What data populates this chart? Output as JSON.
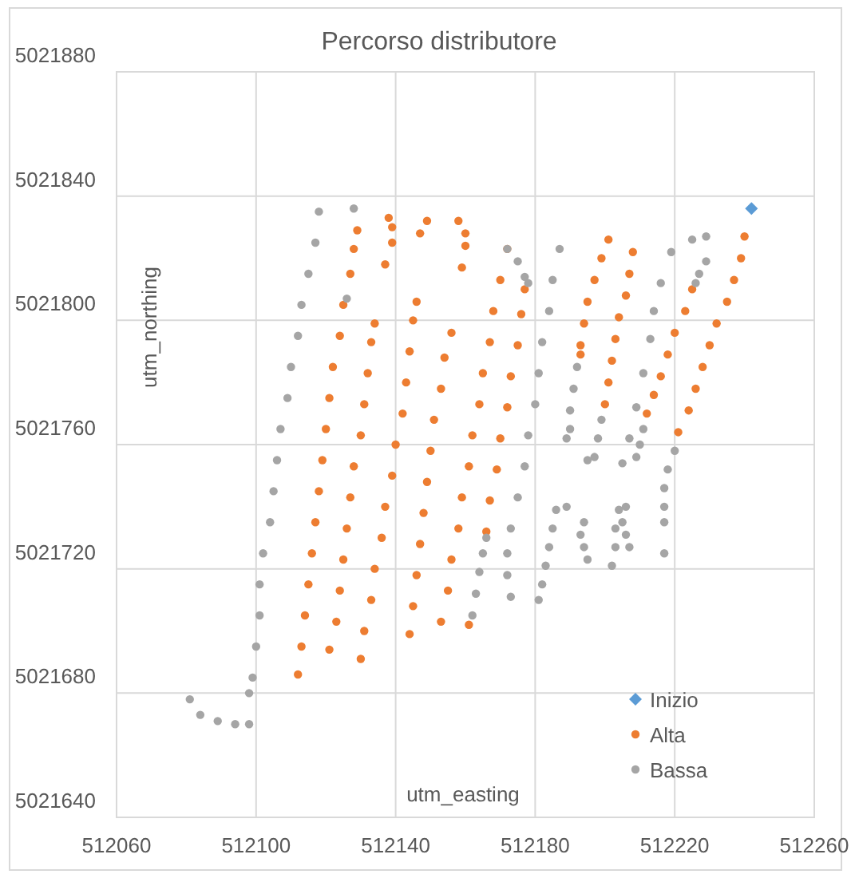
{
  "chart_data": {
    "type": "scatter",
    "title": "Percorso distributore",
    "xlabel": "utm_easting",
    "ylabel": "utm_northing",
    "xlim": [
      512060,
      512260
    ],
    "xticks": [
      512060,
      512100,
      512140,
      512180,
      512220,
      512260
    ],
    "ylim": [
      5021640,
      5021880
    ],
    "yticks": [
      5021640,
      5021680,
      5021720,
      5021760,
      5021800,
      5021840,
      5021880
    ],
    "grid": true,
    "legend": "bottom right",
    "series": [
      {
        "name": "Inizio",
        "color": "#5b9bd5",
        "marker": "diamond",
        "x": [
          512242
        ],
        "values": [
          5021836
        ]
      },
      {
        "name": "Alta",
        "color": "#ed7d31",
        "marker": "circle",
        "x": [
          512112,
          512113,
          512114,
          512115,
          512116,
          512117,
          512118,
          512119,
          512120,
          512121,
          512122,
          512124,
          512125,
          512127,
          512128,
          512129,
          512121,
          512123,
          512124,
          512125,
          512126,
          512127,
          512128,
          512130,
          512131,
          512132,
          512133,
          512134,
          512130,
          512131,
          512133,
          512134,
          512136,
          512137,
          512139,
          512140,
          512142,
          512143,
          512144,
          512145,
          512146,
          512144,
          512145,
          512146,
          512147,
          512148,
          512149,
          512150,
          512151,
          512153,
          512154,
          512156,
          512153,
          512155,
          512156,
          512158,
          512159,
          512161,
          512162,
          512164,
          512165,
          512167,
          512168,
          512170,
          512172,
          512161,
          512166,
          512167,
          512169,
          512170,
          512172,
          512173,
          512175,
          512176,
          512177,
          512201,
          512199,
          512197,
          512195,
          512194,
          512193,
          512193,
          512208,
          512207,
          512206,
          512204,
          512203,
          512202,
          512201,
          512200,
          512225,
          512223,
          512220,
          512218,
          512216,
          512214,
          512212,
          512240,
          512239,
          512237,
          512235,
          512232,
          512230,
          512228,
          512226,
          512224,
          512221,
          512138,
          512139,
          512139,
          512137,
          512147,
          512149,
          512158,
          512160,
          512160,
          512159
        ],
        "values": [
          5021686,
          5021695,
          5021705,
          5021715,
          5021725,
          5021735,
          5021745,
          5021755,
          5021765,
          5021775,
          5021785,
          5021795,
          5021805,
          5021815,
          5021823,
          5021829,
          5021694,
          5021703,
          5021713,
          5021723,
          5021733,
          5021743,
          5021753,
          5021763,
          5021773,
          5021783,
          5021793,
          5021799,
          5021691,
          5021700,
          5021710,
          5021720,
          5021730,
          5021740,
          5021750,
          5021760,
          5021770,
          5021780,
          5021790,
          5021800,
          5021806,
          5021699,
          5021708,
          5021718,
          5021728,
          5021738,
          5021748,
          5021758,
          5021768,
          5021778,
          5021788,
          5021796,
          5021703,
          5021713,
          5021723,
          5021733,
          5021743,
          5021753,
          5021763,
          5021773,
          5021783,
          5021793,
          5021803,
          5021813,
          5021823,
          5021702,
          5021732,
          5021742,
          5021752,
          5021762,
          5021772,
          5021782,
          5021792,
          5021802,
          5021810,
          5021826,
          5021820,
          5021813,
          5021806,
          5021799,
          5021792,
          5021789,
          5021822,
          5021815,
          5021808,
          5021801,
          5021794,
          5021787,
          5021780,
          5021773,
          5021810,
          5021803,
          5021796,
          5021789,
          5021782,
          5021776,
          5021770,
          5021827,
          5021820,
          5021813,
          5021806,
          5021799,
          5021792,
          5021785,
          5021778,
          5021771,
          5021764,
          5021833,
          5021830,
          5021825,
          5021818,
          5021828,
          5021832,
          5021832,
          5021828,
          5021824,
          5021817
        ]
      },
      {
        "name": "Bassa",
        "color": "#a5a5a5",
        "marker": "circle",
        "x": [
          512118,
          512117,
          512115,
          512113,
          512112,
          512110,
          512109,
          512107,
          512106,
          512105,
          512104,
          512102,
          512101,
          512101,
          512100,
          512099,
          512098,
          512081,
          512084,
          512089,
          512094,
          512098,
          512128,
          512126,
          512172,
          512175,
          512177,
          512178,
          512162,
          512163,
          512164,
          512165,
          512166,
          512187,
          512185,
          512184,
          512182,
          512181,
          512180,
          512178,
          512177,
          512175,
          512173,
          512172,
          512172,
          512173,
          512186,
          512185,
          512184,
          512183,
          512182,
          512181,
          512189,
          512192,
          512191,
          512190,
          512190,
          512189,
          512199,
          512198,
          512197,
          512195,
          512229,
          512225,
          512219,
          512216,
          512214,
          512213,
          512211,
          512209,
          512207,
          512229,
          512227,
          512226,
          512211,
          512210,
          512209,
          512205,
          512220,
          512218,
          512217,
          512217,
          512217,
          512217,
          512194,
          512193,
          512194,
          512195,
          512204,
          512203,
          512203,
          512202,
          512206,
          512205,
          512206,
          512207
        ],
        "values": [
          5021835,
          5021825,
          5021815,
          5021805,
          5021795,
          5021785,
          5021775,
          5021765,
          5021755,
          5021745,
          5021735,
          5021725,
          5021715,
          5021705,
          5021695,
          5021685,
          5021680,
          5021678,
          5021673,
          5021671,
          5021670,
          5021670,
          5021836,
          5021807,
          5021823,
          5021819,
          5021814,
          5021812,
          5021705,
          5021712,
          5021719,
          5021725,
          5021730,
          5021823,
          5021813,
          5021803,
          5021793,
          5021783,
          5021773,
          5021763,
          5021753,
          5021743,
          5021733,
          5021725,
          5021718,
          5021711,
          5021739,
          5021733,
          5021727,
          5021721,
          5021715,
          5021710,
          5021740,
          5021785,
          5021778,
          5021771,
          5021765,
          5021762,
          5021768,
          5021762,
          5021756,
          5021755,
          5021827,
          5021826,
          5021822,
          5021812,
          5021803,
          5021794,
          5021783,
          5021772,
          5021762,
          5021819,
          5021815,
          5021812,
          5021765,
          5021760,
          5021756,
          5021754,
          5021758,
          5021752,
          5021746,
          5021740,
          5021735,
          5021725,
          5021735,
          5021731,
          5021727,
          5021723,
          5021739,
          5021733,
          5021727,
          5021721,
          5021740,
          5021735,
          5021731,
          5021727
        ]
      }
    ]
  }
}
